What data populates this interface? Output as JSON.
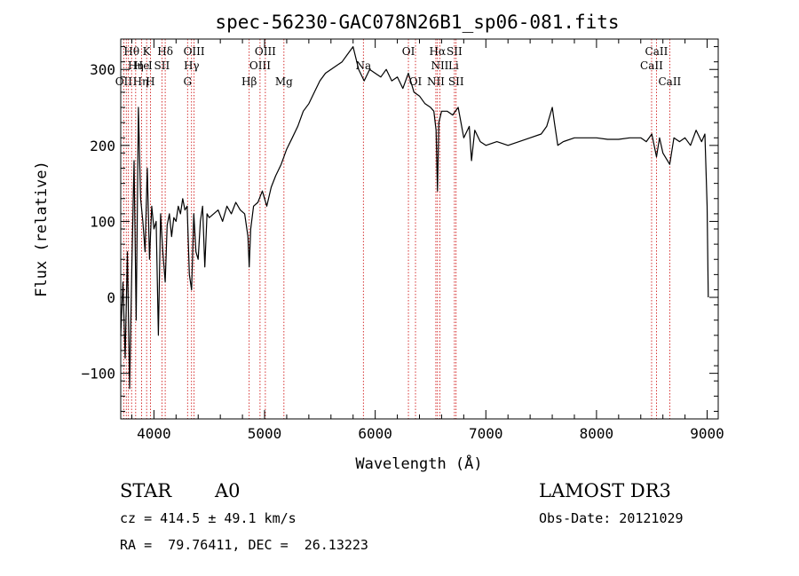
{
  "chart_data": {
    "type": "line",
    "title": "spec-56230-GAC078N26B1_sp06-081.fits",
    "xlabel": "Wavelength (Å)",
    "ylabel": "Flux (relative)",
    "xlim": [
      3700,
      9100
    ],
    "ylim": [
      -160,
      340
    ],
    "x_ticks": [
      4000,
      5000,
      6000,
      7000,
      8000,
      9000
    ],
    "x_tick_labels": [
      "4000",
      "5000",
      "6000",
      "7000",
      "8000",
      "9000"
    ],
    "y_ticks": [
      -100,
      0,
      100,
      200,
      300
    ],
    "y_tick_labels": [
      "−100",
      "0",
      "100",
      "200",
      "300"
    ],
    "grid": false,
    "series": [
      {
        "color": "#000000",
        "x": [
          3700,
          3720,
          3740,
          3760,
          3780,
          3800,
          3820,
          3840,
          3860,
          3880,
          3900,
          3920,
          3940,
          3960,
          3980,
          4000,
          4020,
          4040,
          4060,
          4080,
          4102,
          4120,
          4140,
          4160,
          4180,
          4200,
          4220,
          4240,
          4260,
          4280,
          4300,
          4320,
          4340,
          4360,
          4380,
          4400,
          4420,
          4440,
          4460,
          4480,
          4500,
          4540,
          4580,
          4620,
          4660,
          4700,
          4740,
          4780,
          4820,
          4850,
          4861,
          4875,
          4900,
          4940,
          4980,
          5020,
          5060,
          5100,
          5150,
          5200,
          5250,
          5300,
          5350,
          5400,
          5450,
          5500,
          5550,
          5600,
          5650,
          5700,
          5750,
          5800,
          5850,
          5900,
          5950,
          6000,
          6050,
          6100,
          6150,
          6200,
          6250,
          6300,
          6350,
          6400,
          6450,
          6500,
          6530,
          6550,
          6563,
          6575,
          6600,
          6650,
          6700,
          6750,
          6800,
          6850,
          6870,
          6900,
          6950,
          7000,
          7100,
          7200,
          7300,
          7400,
          7500,
          7550,
          7600,
          7620,
          7650,
          7700,
          7800,
          7900,
          8000,
          8100,
          8200,
          8300,
          8400,
          8450,
          8500,
          8542,
          8570,
          8600,
          8662,
          8700,
          8750,
          8800,
          8850,
          8900,
          8950,
          8980,
          9000,
          9010
        ],
        "y": [
          -50,
          20,
          -80,
          60,
          -120,
          40,
          180,
          -30,
          250,
          130,
          100,
          60,
          170,
          50,
          120,
          90,
          100,
          -50,
          110,
          60,
          20,
          95,
          110,
          80,
          105,
          100,
          120,
          110,
          130,
          115,
          120,
          30,
          10,
          110,
          60,
          50,
          100,
          120,
          40,
          110,
          105,
          110,
          115,
          100,
          120,
          110,
          125,
          115,
          110,
          80,
          40,
          90,
          120,
          125,
          140,
          120,
          145,
          160,
          175,
          195,
          210,
          225,
          245,
          255,
          270,
          285,
          295,
          300,
          305,
          310,
          320,
          330,
          300,
          285,
          300,
          295,
          290,
          300,
          285,
          290,
          275,
          295,
          270,
          265,
          255,
          250,
          245,
          220,
          140,
          230,
          245,
          245,
          240,
          250,
          210,
          225,
          180,
          220,
          205,
          200,
          205,
          200,
          205,
          210,
          215,
          225,
          250,
          230,
          200,
          205,
          210,
          210,
          210,
          208,
          208,
          210,
          210,
          205,
          215,
          185,
          210,
          190,
          175,
          210,
          205,
          210,
          200,
          220,
          205,
          215,
          120,
          0
        ]
      }
    ],
    "line_labels": [
      {
        "text": "Hθ",
        "x": 3798,
        "row": 1
      },
      {
        "text": "K",
        "x": 3934,
        "row": 1
      },
      {
        "text": "Hδ",
        "x": 4102,
        "row": 1
      },
      {
        "text": "OIII",
        "x": 4363,
        "row": 1
      },
      {
        "text": "OIII",
        "x": 5007,
        "row": 1
      },
      {
        "text": "OI",
        "x": 6300,
        "row": 1
      },
      {
        "text": "Hα",
        "x": 6563,
        "row": 1
      },
      {
        "text": "SII",
        "x": 6716,
        "row": 1
      },
      {
        "text": "CaII",
        "x": 8542,
        "row": 1
      },
      {
        "text": "Hη",
        "x": 3835,
        "row": 2
      },
      {
        "text": "He",
        "x": 3889,
        "row": 2
      },
      {
        "text": "I",
        "x": 3968,
        "row": 2
      },
      {
        "text": "SII",
        "x": 4072,
        "row": 2
      },
      {
        "text": "Hγ",
        "x": 4340,
        "row": 2
      },
      {
        "text": "OIII",
        "x": 4959,
        "row": 2
      },
      {
        "text": "Na",
        "x": 5893,
        "row": 2
      },
      {
        "text": "NII",
        "x": 6584,
        "row": 2
      },
      {
        "text": "Li",
        "x": 6708,
        "row": 2
      },
      {
        "text": "CaII",
        "x": 8498,
        "row": 2
      },
      {
        "text": "OII",
        "x": 3727,
        "row": 3
      },
      {
        "text": "Hη",
        "x": 3880,
        "row": 3
      },
      {
        "text": "H",
        "x": 3968,
        "row": 3
      },
      {
        "text": "G",
        "x": 4304,
        "row": 3
      },
      {
        "text": "Hβ",
        "x": 4861,
        "row": 3
      },
      {
        "text": "Mg",
        "x": 5175,
        "row": 3
      },
      {
        "text": "OI",
        "x": 6364,
        "row": 3
      },
      {
        "text": "NII",
        "x": 6548,
        "row": 3
      },
      {
        "text": "SII",
        "x": 6731,
        "row": 3
      },
      {
        "text": "CaII",
        "x": 8662,
        "row": 3
      }
    ],
    "line_marks": [
      3727,
      3750,
      3770,
      3798,
      3835,
      3889,
      3934,
      3968,
      4072,
      4102,
      4304,
      4340,
      4363,
      4861,
      4959,
      5007,
      5175,
      5893,
      6300,
      6364,
      6548,
      6563,
      6584,
      6716,
      6731,
      8498,
      8542,
      8662
    ]
  },
  "info": {
    "object_class": "STAR",
    "subclass": "A0",
    "survey": "LAMOST DR3",
    "cz": "cz = 414.5 ± 49.1 km/s",
    "obs_date": "Obs-Date: 20121029",
    "coords": "RA =  79.76411, DEC =  26.13223"
  }
}
